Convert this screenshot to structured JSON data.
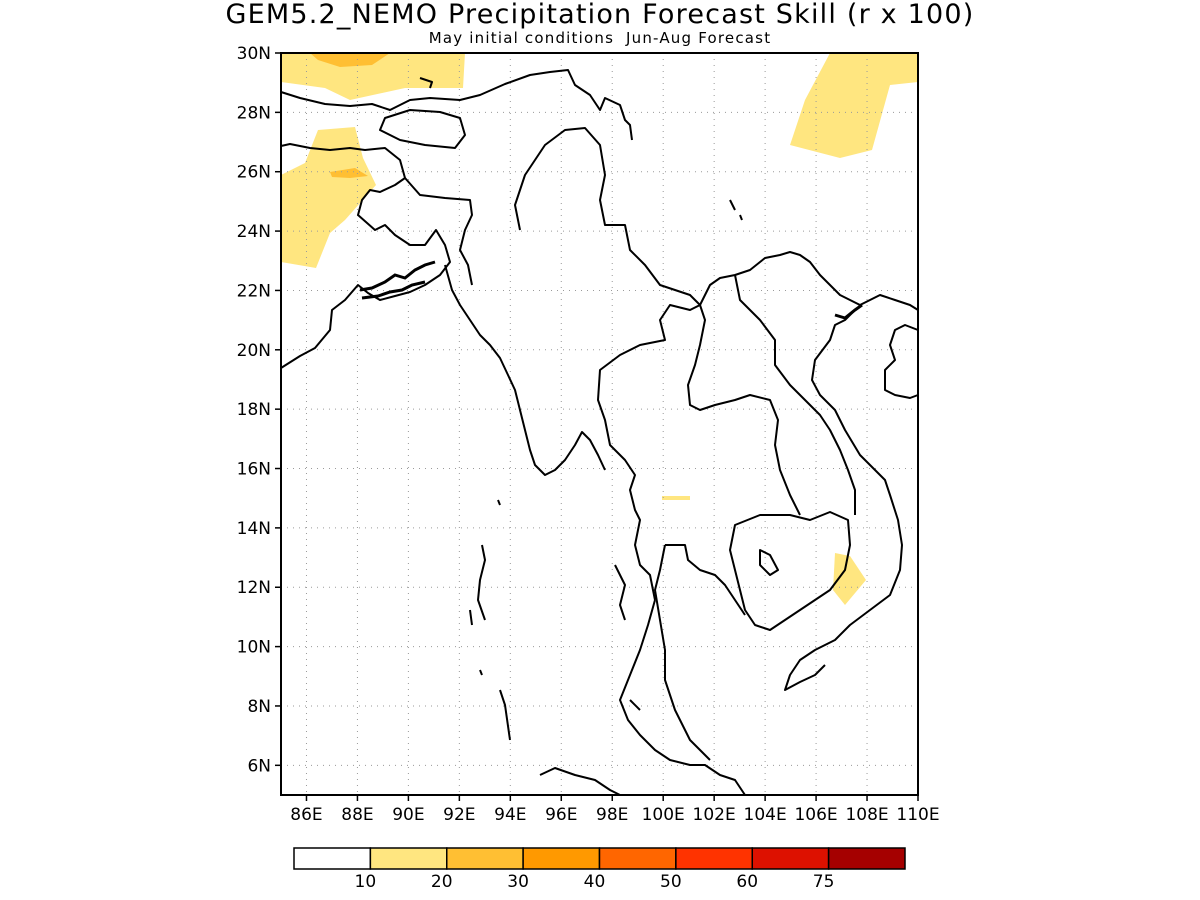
{
  "title": "GEM5.2_NEMO Precipitation Forecast Skill (r x 100)",
  "subtitle": "May initial conditions  Jun-Aug Forecast",
  "map": {
    "lon_range": [
      85,
      110
    ],
    "lat_range": [
      5,
      30
    ],
    "lat_labels": [
      "6N",
      "8N",
      "10N",
      "12N",
      "14N",
      "16N",
      "18N",
      "20N",
      "22N",
      "24N",
      "26N",
      "28N",
      "30N"
    ],
    "lon_labels": [
      "86E",
      "88E",
      "90E",
      "92E",
      "94E",
      "96E",
      "98E",
      "100E",
      "102E",
      "104E",
      "106E",
      "108E",
      "110E"
    ]
  },
  "legend": {
    "colors": [
      "#ffffff",
      "#ffe680",
      "#ffbf33",
      "#ff9900",
      "#ff6600",
      "#ff3300",
      "#dd1100",
      "#a50000"
    ],
    "labels": [
      "10",
      "20",
      "30",
      "40",
      "50",
      "60",
      "75"
    ]
  }
}
